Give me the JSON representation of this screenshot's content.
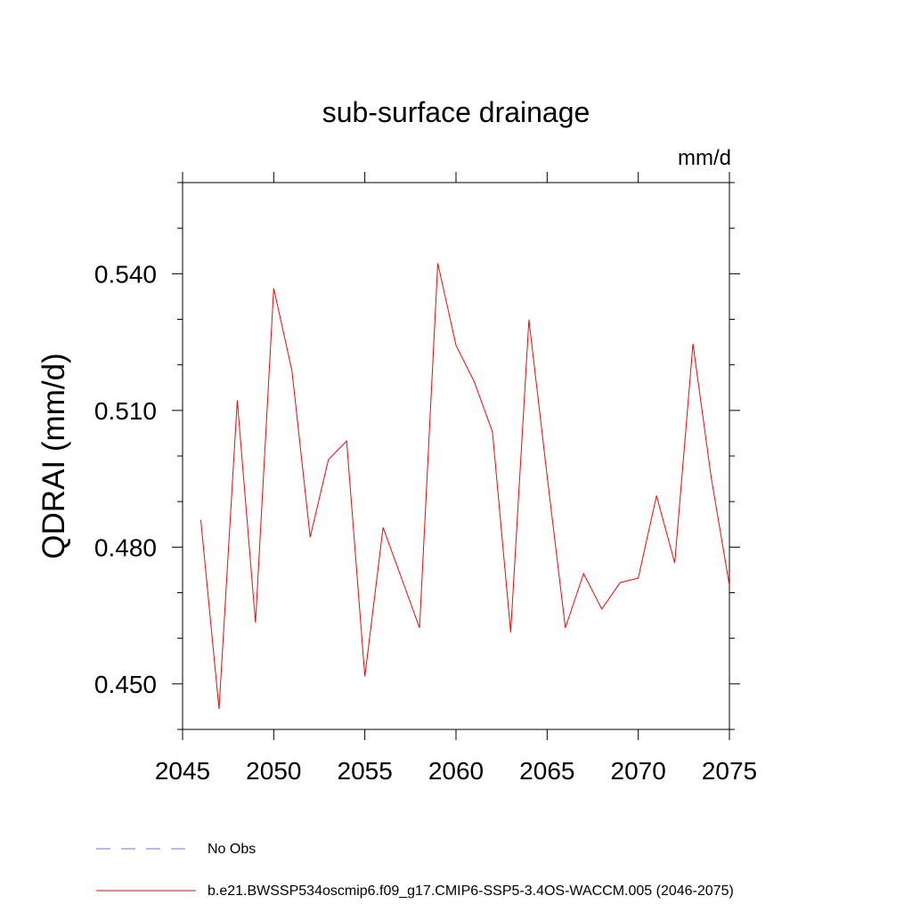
{
  "chart_data": {
    "type": "line",
    "title": "sub-surface drainage",
    "units": "mm/d",
    "ylabel": "QDRAI  (mm/d)",
    "xlabel": "",
    "xlim": [
      2045,
      2075
    ],
    "ylim": [
      0.44,
      0.56
    ],
    "x_ticks": [
      2045,
      2050,
      2055,
      2060,
      2065,
      2070,
      2075
    ],
    "x_tick_labels": [
      "2045",
      "2050",
      "2055",
      "2060",
      "2065",
      "2070",
      "2075"
    ],
    "y_ticks": [
      0.45,
      0.48,
      0.51,
      0.54
    ],
    "y_tick_labels": [
      "0.450",
      "0.480",
      "0.510",
      "0.540"
    ],
    "grid": false,
    "legend_position": "bottom",
    "series": [
      {
        "name": "b.e21.BWSSP534oscmip6.f09_g17.CMIP6-SSP5-3.4OS-WACCM.005 (2046-2075)",
        "color": "#ff0000",
        "style": "solid",
        "x": [
          2046,
          2047,
          2048,
          2049,
          2050,
          2051,
          2052,
          2053,
          2054,
          2055,
          2056,
          2057,
          2058,
          2059,
          2060,
          2061,
          2062,
          2063,
          2064,
          2065,
          2066,
          2067,
          2068,
          2069,
          2070,
          2071,
          2072,
          2073,
          2074,
          2075
        ],
        "values": [
          0.486,
          0.4445,
          0.5122,
          0.4634,
          0.5368,
          0.5187,
          0.4822,
          0.4992,
          0.5033,
          0.4516,
          0.4843,
          0.4733,
          0.4623,
          0.5423,
          0.5243,
          0.5163,
          0.5053,
          0.4613,
          0.5299,
          0.4956,
          0.4623,
          0.4742,
          0.4664,
          0.4722,
          0.4732,
          0.4913,
          0.4765,
          0.5246,
          0.4953,
          0.4716
        ]
      }
    ],
    "legend_entries": [
      {
        "label": "No Obs",
        "color": "#7a6fd8",
        "style": "dashed"
      },
      {
        "label": "b.e21.BWSSP534oscmip6.f09_g17.CMIP6-SSP5-3.4OS-WACCM.005 (2046-2075)",
        "color": "#ff0000",
        "style": "solid"
      }
    ]
  }
}
